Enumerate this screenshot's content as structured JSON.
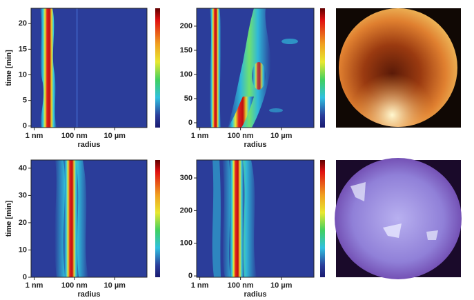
{
  "chart_data": [
    {
      "type": "heatmap",
      "xlabel": "radius",
      "ylabel": "time [min]",
      "xscale": "log",
      "xlim": [
        0.7,
        400000
      ],
      "xticks": [
        {
          "value": 1,
          "label": "1 nm"
        },
        {
          "value": 100,
          "label": "100 nm"
        },
        {
          "value": 10000,
          "label": "10 µm"
        }
      ],
      "ylim": [
        -0.3,
        23
      ],
      "yticks": [
        0,
        5,
        10,
        15,
        20
      ]
    },
    {
      "type": "heatmap",
      "xlabel": "radius",
      "xscale": "log",
      "xlim": [
        0.7,
        400000
      ],
      "xticks": [
        {
          "value": 1,
          "label": "1 nm"
        },
        {
          "value": 100,
          "label": "100 nm"
        },
        {
          "value": 10000,
          "label": "10 µm"
        }
      ],
      "ylim": [
        -10,
        237
      ],
      "yticks": [
        0,
        50,
        100,
        150,
        200
      ]
    },
    {
      "type": "heatmap",
      "xlabel": "radius",
      "ylabel": "time [min]",
      "xscale": "log",
      "xlim": [
        0.7,
        400000
      ],
      "xticks": [
        {
          "value": 1,
          "label": "1 nm"
        },
        {
          "value": 100,
          "label": "100 nm"
        },
        {
          "value": 10000,
          "label": "10 µm"
        }
      ],
      "ylim": [
        0,
        43
      ],
      "yticks": [
        0,
        10,
        20,
        30,
        40
      ]
    },
    {
      "type": "heatmap",
      "xlabel": "radius",
      "xscale": "log",
      "xlim": [
        0.7,
        400000
      ],
      "xticks": [
        {
          "value": 1,
          "label": "1 nm"
        },
        {
          "value": 100,
          "label": "100 nm"
        },
        {
          "value": 10000,
          "label": "10 µm"
        }
      ],
      "ylim": [
        -4,
        355
      ],
      "yticks": [
        0,
        100,
        200,
        300
      ]
    }
  ]
}
